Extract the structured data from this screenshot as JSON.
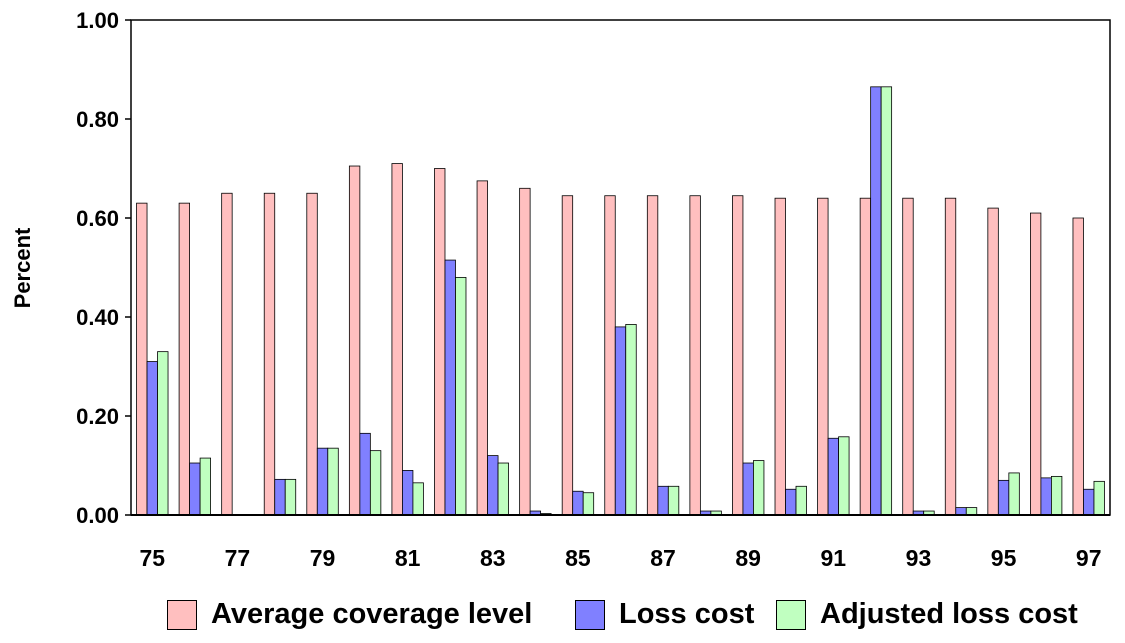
{
  "chart_data": {
    "type": "bar",
    "ylabel": "Percent",
    "xlabel": "",
    "ylim": [
      0,
      1.0
    ],
    "yticks": [
      "0.00",
      "0.20",
      "0.40",
      "0.60",
      "0.80",
      "1.00"
    ],
    "categories": [
      "75",
      "76",
      "77",
      "78",
      "79",
      "80",
      "81",
      "82",
      "83",
      "84",
      "85",
      "86",
      "87",
      "88",
      "89",
      "90",
      "91",
      "92",
      "93",
      "94",
      "95",
      "96",
      "97"
    ],
    "xtick_labels": [
      "75",
      "",
      "77",
      "",
      "79",
      "",
      "81",
      "",
      "83",
      "",
      "85",
      "",
      "87",
      "",
      "89",
      "",
      "91",
      "",
      "93",
      "",
      "95",
      "",
      "97"
    ],
    "series": [
      {
        "name": "Average coverage level",
        "color": "#ffbfbf",
        "values": [
          0.63,
          0.63,
          0.65,
          0.65,
          0.65,
          0.705,
          0.71,
          0.7,
          0.675,
          0.66,
          0.645,
          0.645,
          0.645,
          0.645,
          0.645,
          0.64,
          0.64,
          0.64,
          0.64,
          0.64,
          0.62,
          0.61,
          0.6
        ]
      },
      {
        "name": "Loss cost",
        "color": "#8080ff",
        "values": [
          0.31,
          0.105,
          0.0,
          0.072,
          0.135,
          0.165,
          0.09,
          0.515,
          0.12,
          0.008,
          0.048,
          0.38,
          0.058,
          0.008,
          0.105,
          0.052,
          0.155,
          0.865,
          0.008,
          0.015,
          0.07,
          0.075,
          0.052
        ]
      },
      {
        "name": "Adjusted loss cost",
        "color": "#c0ffc0",
        "values": [
          0.33,
          0.115,
          0.0,
          0.072,
          0.135,
          0.13,
          0.065,
          0.48,
          0.105,
          0.003,
          0.045,
          0.385,
          0.058,
          0.008,
          0.11,
          0.058,
          0.158,
          0.865,
          0.008,
          0.015,
          0.085,
          0.078,
          0.068
        ]
      }
    ],
    "grid": false,
    "legend_position": "bottom"
  }
}
